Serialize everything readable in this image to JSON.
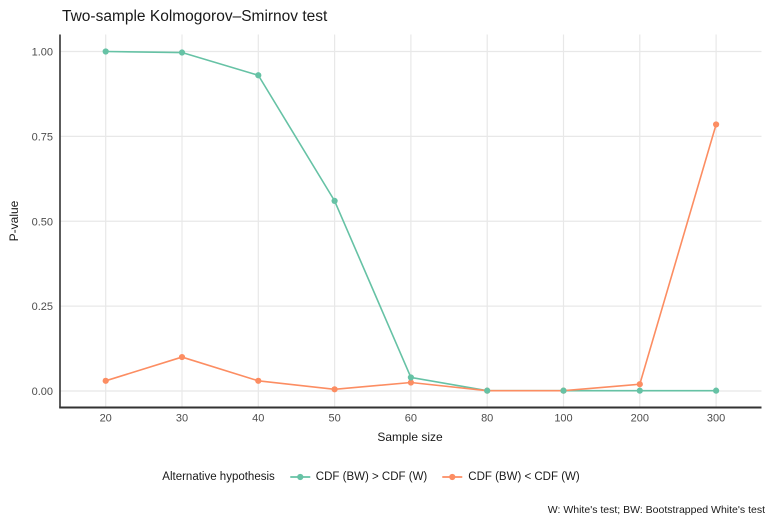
{
  "title": "Two-sample Kolmogorov–Smirnov test",
  "caption": "W: White's test; BW: Bootstrapped White's test",
  "colors": {
    "series_green": "#66C2A5",
    "series_orange": "#FC8D62",
    "grid": "#E8E8E8",
    "axis_line": "#333333",
    "tick_text": "#4D4D4D",
    "title_text": "#1A1A1A"
  },
  "legend": {
    "title": "Alternative hypothesis",
    "items": [
      {
        "label": "CDF (BW) > CDF (W)",
        "color": "#66C2A5"
      },
      {
        "label": "CDF (BW) < CDF (W)",
        "color": "#FC8D62"
      }
    ]
  },
  "chart_data": {
    "type": "line",
    "title": "Two-sample Kolmogorov–Smirnov test",
    "xlabel": "Sample size",
    "ylabel": "P-value",
    "categories": [
      20,
      30,
      40,
      50,
      60,
      80,
      100,
      200,
      300
    ],
    "x_tick_labels": [
      "20",
      "30",
      "40",
      "50",
      "60",
      "80",
      "100",
      "200",
      "300"
    ],
    "yticks": [
      0,
      0.25,
      0.5,
      0.75,
      1.0
    ],
    "ytick_labels": [
      "0.00",
      "0.25",
      "0.50",
      "0.75",
      "1.00"
    ],
    "ylim": [
      0,
      1
    ],
    "grid": true,
    "legend_position": "bottom",
    "series": [
      {
        "name": "CDF (BW) > CDF (W)",
        "color": "#66C2A5",
        "values": [
          1.0,
          0.997,
          0.93,
          0.56,
          0.04,
          0.001,
          0.001,
          0.001,
          0.001
        ]
      },
      {
        "name": "CDF (BW) < CDF (W)",
        "color": "#FC8D62",
        "values": [
          0.03,
          0.1,
          0.03,
          0.005,
          0.025,
          0.001,
          0.001,
          0.02,
          0.785
        ]
      }
    ]
  }
}
